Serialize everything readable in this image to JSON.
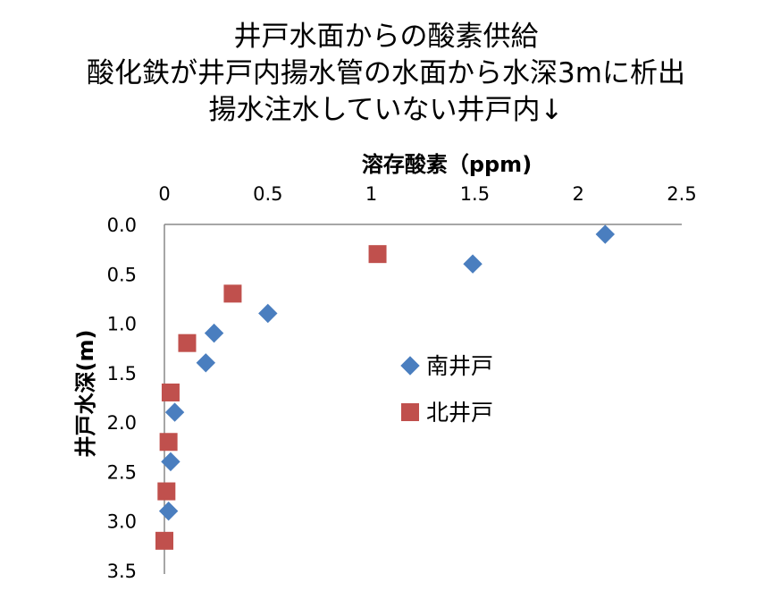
{
  "chart_data": {
    "type": "scatter",
    "title_lines": [
      "井戸水面からの酸素供給",
      "酸化鉄が井戸内揚水管の水面から水深3mに析出",
      "揚水注水していない井戸内↓"
    ],
    "xlabel": "溶存酸素（ppm)",
    "ylabel": "井戸水深(m)",
    "x_axis_position": "top",
    "y_axis_inverted": true,
    "xlim": [
      0,
      2.5
    ],
    "ylim": [
      0,
      3.5
    ],
    "x_ticks": [
      "0",
      "0.5",
      "1",
      "1.5",
      "2",
      "2.5"
    ],
    "y_ticks": [
      "0.0",
      "0.5",
      "1.0",
      "1.5",
      "2.0",
      "2.5",
      "3.0",
      "3.5"
    ],
    "grid": false,
    "legend_position": "right",
    "series": [
      {
        "name": "南井戸",
        "marker": "diamond",
        "color": "#4a7ebf",
        "points": [
          {
            "x": 2.13,
            "y": 0.1
          },
          {
            "x": 1.49,
            "y": 0.4
          },
          {
            "x": 0.5,
            "y": 0.9
          },
          {
            "x": 0.24,
            "y": 1.1
          },
          {
            "x": 0.2,
            "y": 1.4
          },
          {
            "x": 0.05,
            "y": 1.9
          },
          {
            "x": 0.03,
            "y": 2.4
          },
          {
            "x": 0.02,
            "y": 2.9
          }
        ]
      },
      {
        "name": "北井戸",
        "marker": "square",
        "color": "#c0504d",
        "points": [
          {
            "x": 1.03,
            "y": 0.3
          },
          {
            "x": 0.33,
            "y": 0.7
          },
          {
            "x": 0.11,
            "y": 1.2
          },
          {
            "x": 0.03,
            "y": 1.7
          },
          {
            "x": 0.02,
            "y": 2.2
          },
          {
            "x": 0.01,
            "y": 2.7
          },
          {
            "x": 0.0,
            "y": 3.2
          }
        ]
      }
    ]
  }
}
